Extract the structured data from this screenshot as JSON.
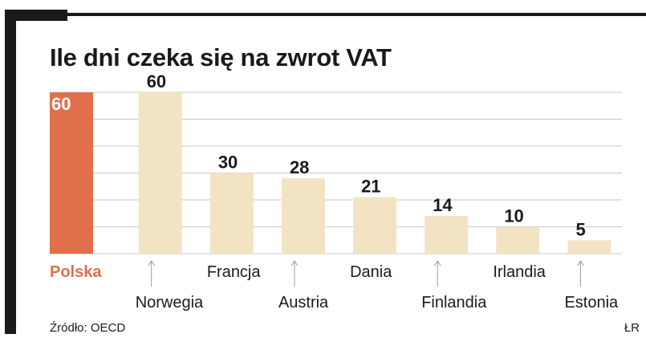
{
  "title": "Ile dni czeka się na zwrot VAT",
  "source": "Źródło: OECD",
  "credit": "ŁR",
  "colors": {
    "highlight": "#e0704a",
    "highlight_text": "#e0704a",
    "bar": "#f2e4c3",
    "grid": "#c9c9c9",
    "text": "#1a1a1a",
    "frame": "#1a1a1a"
  },
  "chart_data": {
    "type": "bar",
    "title": "Ile dni czeka się na zwrot VAT",
    "xlabel": "",
    "ylabel": "",
    "categories": [
      "Polska",
      "Norwegia",
      "Francja",
      "Austria",
      "Dania",
      "Finlandia",
      "Irlandia",
      "Estonia"
    ],
    "values": [
      60,
      60,
      30,
      28,
      21,
      14,
      10,
      5
    ],
    "highlighted_category": "Polska",
    "ylim": [
      0,
      60
    ],
    "grid": true,
    "legend": "none"
  }
}
